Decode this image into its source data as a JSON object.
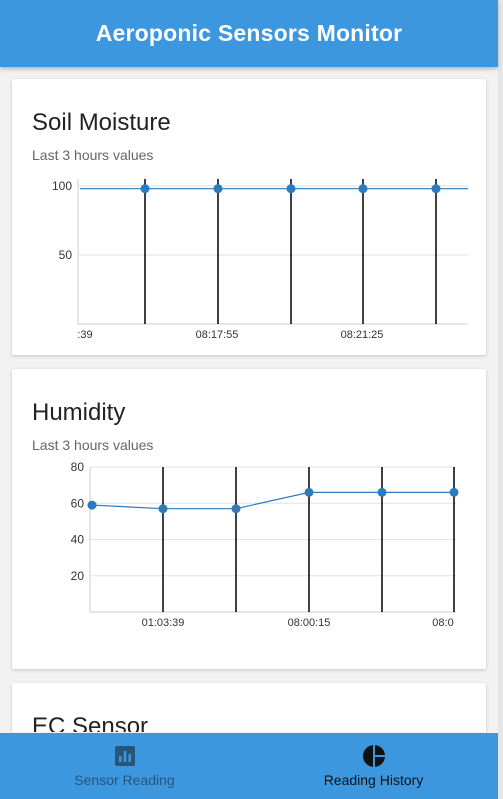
{
  "app": {
    "title": "Aeroponic Sensors Monitor"
  },
  "colors": {
    "primary": "#3c97df",
    "series": "#2a7bbf"
  },
  "cards": [
    {
      "title": "Soil Moisture",
      "subtitle": "Last 3 hours values"
    },
    {
      "title": "Humidity",
      "subtitle": "Last 3 hours values"
    },
    {
      "title": "EC Sensor"
    }
  ],
  "chart_data": [
    {
      "type": "line",
      "title": "Soil Moisture",
      "x": [
        ":39",
        "",
        "08:17:55",
        "",
        "08:21:25",
        ""
      ],
      "x_tick_labels": [
        ":39",
        "08:17:55",
        "08:21:25"
      ],
      "series": [
        {
          "values": [
            null,
            98,
            98,
            98,
            98,
            98
          ]
        }
      ],
      "yticks": [
        50,
        100
      ],
      "ylim": [
        0,
        105
      ],
      "grid": true,
      "legend": "none"
    },
    {
      "type": "line",
      "title": "Humidity",
      "x": [
        "",
        "01:03:39",
        "",
        "08:00:15",
        "",
        "08:0"
      ],
      "x_tick_labels": [
        "01:03:39",
        "08:00:15",
        "08:0"
      ],
      "series": [
        {
          "values": [
            59,
            57,
            57,
            66,
            66,
            66
          ]
        }
      ],
      "yticks": [
        20,
        40,
        60,
        80
      ],
      "ytick_labels": [
        "20",
        "40",
        "60",
        "80"
      ],
      "ylim": [
        0,
        80
      ],
      "grid": true,
      "legend": "none"
    }
  ],
  "nav": [
    {
      "label": "Sensor Reading",
      "icon": "bar-chart-icon",
      "active": false
    },
    {
      "label": "Reading History",
      "icon": "pie-chart-icon",
      "active": true
    }
  ]
}
